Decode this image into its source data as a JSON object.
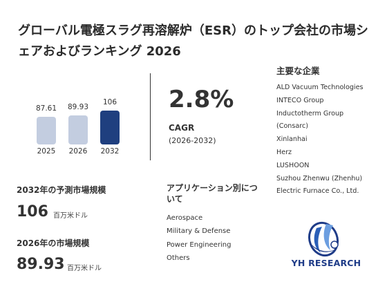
{
  "title": "グローバル電極スラグ再溶解炉（ESR）のトップ会社の市場シェアおよびランキング 2026",
  "chart_data": {
    "type": "bar",
    "categories": [
      "2025",
      "2026",
      "2032"
    ],
    "values": [
      87.61,
      89.93,
      106
    ],
    "value_labels": [
      "87.61",
      "89.93",
      "106"
    ],
    "colors": [
      "#c3cde0",
      "#c3cde0",
      "#1f3f7f"
    ]
  },
  "cagr": {
    "value": "2.8%",
    "label": "CAGR",
    "period": "(2026-2032)"
  },
  "players": {
    "title": "主要な企業",
    "items": [
      "ALD Vacuum Technologies",
      "INTECO Group",
      "Inductotherm Group",
      "(Consarc)",
      "Xinlanhai",
      "Herz",
      "LUSHOON",
      "Suzhou Zhenwu (Zhenhu)",
      "Electric Furnace Co., Ltd."
    ]
  },
  "forecast": {
    "title": "2032年の予測市場規模",
    "value": "106",
    "unit": "百万米ドル"
  },
  "current": {
    "title": "2026年の市場規模",
    "value": "89.93",
    "unit": "百万米ドル"
  },
  "applications": {
    "title": "アプリケーション別について",
    "items": [
      "Aerospace",
      "Military & Defense",
      "Power Engineering",
      "Others"
    ]
  },
  "logo": {
    "text": "YH RESEARCH",
    "color": "#1f3c88"
  }
}
